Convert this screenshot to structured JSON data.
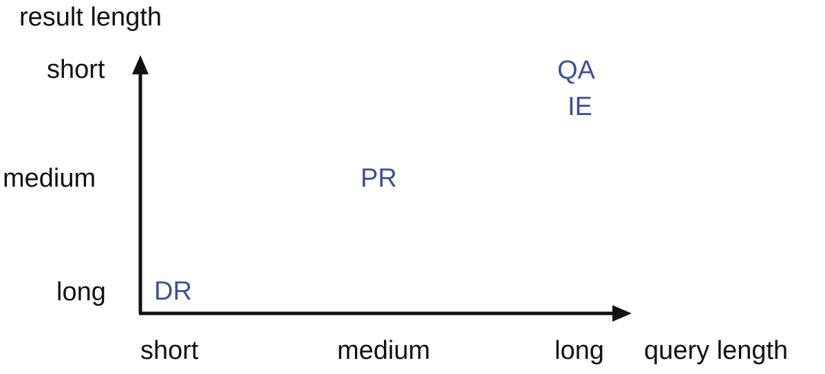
{
  "y_axis": {
    "title": "result length",
    "ticks": [
      "short",
      "medium",
      "long"
    ]
  },
  "x_axis": {
    "title": "query length",
    "ticks": [
      "short",
      "medium",
      "long"
    ]
  },
  "items": [
    {
      "label": "QA",
      "query_length": "long",
      "result_length": "short"
    },
    {
      "label": "IE",
      "query_length": "long",
      "result_length": "short"
    },
    {
      "label": "PR",
      "query_length": "medium",
      "result_length": "medium"
    },
    {
      "label": "DR",
      "query_length": "short",
      "result_length": "long"
    }
  ],
  "colors": {
    "axis": "#111111",
    "item": "#3b4f9a"
  }
}
